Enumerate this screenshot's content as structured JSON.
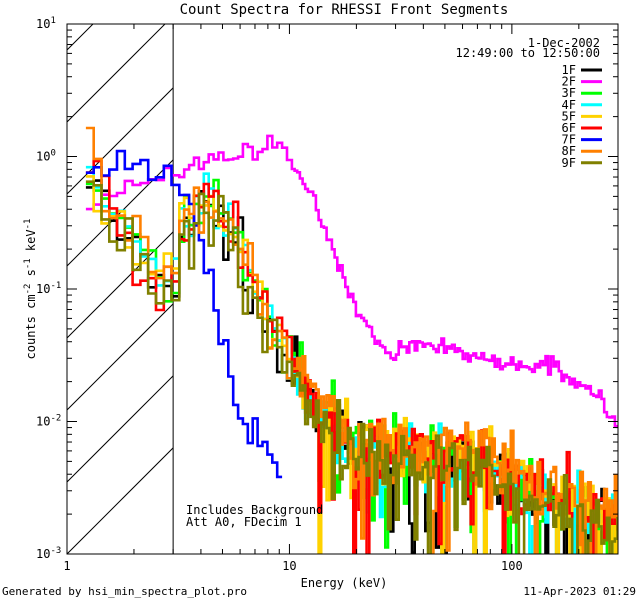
{
  "chart_data": {
    "type": "line",
    "title": "Count Spectra for RHESSI Front Segments",
    "xlabel": "Energy (keV)",
    "ylabel_parts": [
      "counts cm",
      "-2",
      " s",
      "-1",
      " keV",
      "-1"
    ],
    "x_scale": "log",
    "y_scale": "log",
    "xlim": [
      1,
      300
    ],
    "ylim": [
      0.001,
      10
    ],
    "x_tick_labels": [
      {
        "value": 1,
        "label": "1"
      },
      {
        "value": 10,
        "label": "10"
      },
      {
        "value": 100,
        "label": "100"
      }
    ],
    "y_tick_labels": [
      {
        "value": 0.001,
        "base": "10",
        "exp": "-3"
      },
      {
        "value": 0.01,
        "base": "10",
        "exp": "-2"
      },
      {
        "value": 0.1,
        "base": "10",
        "exp": "-1"
      },
      {
        "value": 1,
        "base": "10",
        "exp": "0"
      },
      {
        "value": 10,
        "base": "10",
        "exp": "1"
      }
    ],
    "hatched_region": {
      "from": 1,
      "to": 3
    },
    "date_text": "1-Dec-2002",
    "time_range_text": "12:49:00 to 12:50:00",
    "annotations": [
      "Includes Background",
      "Att A0, FDecim 1"
    ],
    "legend_position": "top-right",
    "series": [
      {
        "name": "1F",
        "color": "#000000"
      },
      {
        "name": "2F",
        "color": "#ff00ff"
      },
      {
        "name": "3F",
        "color": "#00ff00"
      },
      {
        "name": "4F",
        "color": "#00ffff"
      },
      {
        "name": "5F",
        "color": "#ffd200"
      },
      {
        "name": "6F",
        "color": "#ff0000"
      },
      {
        "name": "7F",
        "color": "#0000ff"
      },
      {
        "name": "8F",
        "color": "#ff8000"
      },
      {
        "name": "9F",
        "color": "#808000"
      }
    ]
  },
  "footer": {
    "left": "Generated by hsi_min_spectra_plot.pro",
    "right": "11-Apr-2023 01:29"
  }
}
